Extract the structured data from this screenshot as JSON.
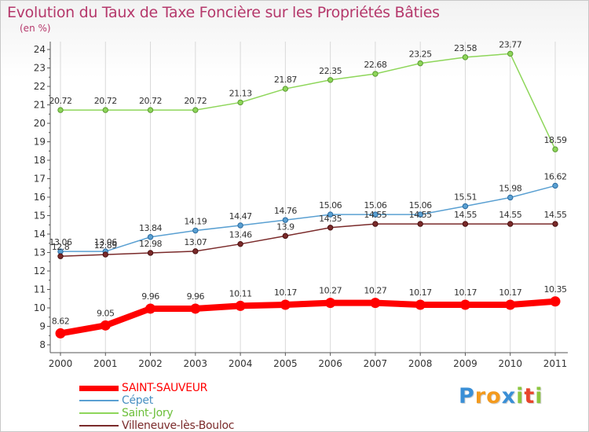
{
  "title": "Evolution du Taux de Taxe Foncière sur les Propriétés Bâties",
  "unit_label": "(en %)",
  "chart_data": {
    "type": "line",
    "title": "Evolution du Taux de Taxe Foncière sur les Propriétés Bâties",
    "ylabel": "(en %)",
    "xlabel": "",
    "x": [
      "2000",
      "2001",
      "2002",
      "2003",
      "2004",
      "2005",
      "2006",
      "2007",
      "2008",
      "2009",
      "2010",
      "2011"
    ],
    "ylim": [
      8,
      24
    ],
    "yticks": [
      "8",
      "9",
      "10",
      "11",
      "12",
      "13",
      "14",
      "15",
      "16",
      "17",
      "18",
      "19",
      "20",
      "21",
      "22",
      "23",
      "24"
    ],
    "grid": "vertical",
    "legend": "bottom-left",
    "series": [
      {
        "name": "SAINT-SAUVEUR",
        "color": "#ff0000",
        "values": [
          8.62,
          9.05,
          9.96,
          9.96,
          10.11,
          10.17,
          10.27,
          10.27,
          10.17,
          10.17,
          10.17,
          10.35
        ],
        "labels": [
          "8.62",
          "9.05",
          "9.96",
          "9.96",
          "10.11",
          "10.17",
          "10.27",
          "10.27",
          "10.17",
          "10.17",
          "10.17",
          "10.35"
        ]
      },
      {
        "name": "Cépet",
        "color": "#5aa0d2",
        "values": [
          13.06,
          13.06,
          13.84,
          14.19,
          14.47,
          14.76,
          15.06,
          15.06,
          15.06,
          15.51,
          15.98,
          16.62
        ],
        "labels": [
          "13.06",
          "13.06",
          "13.84",
          "14.19",
          "14.47",
          "14.76",
          "15.06",
          "15.06",
          "15.06",
          "15.51",
          "15.98",
          "16.62"
        ]
      },
      {
        "name": "Saint-Jory",
        "color": "#8ed65a",
        "values": [
          20.72,
          20.72,
          20.72,
          20.72,
          21.13,
          21.87,
          22.35,
          22.68,
          23.25,
          23.58,
          23.77,
          18.59
        ],
        "labels": [
          "20.72",
          "20.72",
          "20.72",
          "20.72",
          "21.13",
          "21.87",
          "22.35",
          "22.68",
          "23.25",
          "23.58",
          "23.77",
          "18.59"
        ]
      },
      {
        "name": "Villeneuve-lès-Bouloc",
        "color": "#7a2a2a",
        "values": [
          12.8,
          12.89,
          12.98,
          13.07,
          13.46,
          13.9,
          14.35,
          14.55,
          14.55,
          14.55,
          14.55,
          14.55
        ],
        "labels": [
          "12.8",
          "12.89",
          "12.98",
          "13.07",
          "13.46",
          "13.9",
          "14.35",
          "14.55",
          "14.55",
          "14.55",
          "14.55",
          "14.55"
        ]
      }
    ]
  },
  "legend": {
    "items": [
      {
        "label": "SAINT-SAUVEUR",
        "color": "#ff0000",
        "label_color": "#ff0000"
      },
      {
        "label": "Cépet",
        "color": "#5aa0d2",
        "label_color": "#4a90c2"
      },
      {
        "label": "Saint-Jory",
        "color": "#8ed65a",
        "label_color": "#6cbf3a"
      },
      {
        "label": "Villeneuve-lès-Bouloc",
        "color": "#7a2a2a",
        "label_color": "#7a2a2a"
      }
    ]
  },
  "logo": {
    "letters": [
      "P",
      "r",
      "o",
      "x",
      "i",
      "t",
      "i"
    ],
    "colors": [
      "#3a8fd6",
      "#f39a1e",
      "#f39a1e",
      "#3a8fd6",
      "#8cc63f",
      "#e8452c",
      "#8cc63f"
    ]
  }
}
